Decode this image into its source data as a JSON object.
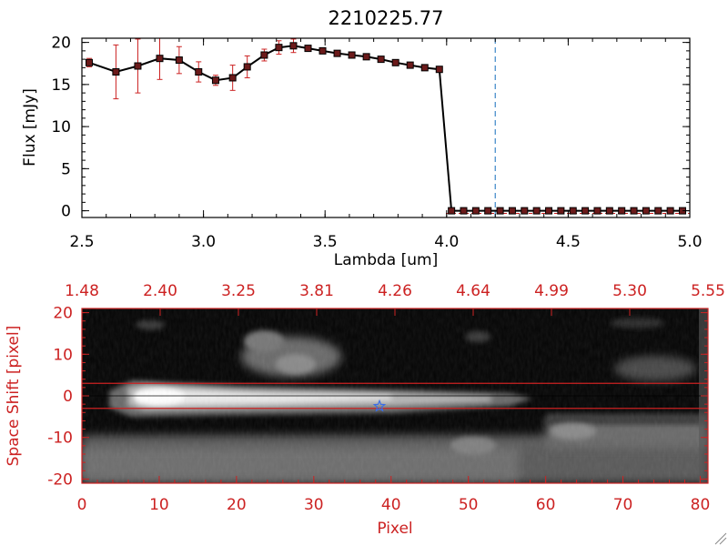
{
  "chart_data": [
    {
      "type": "line",
      "title": "2210225.77",
      "xlabel": "Lambda [um]",
      "ylabel": "Flux [mJy]",
      "xlim": [
        2.5,
        5.0
      ],
      "ylim": [
        -0.8,
        20.5
      ],
      "x_ticks": [
        "2.5",
        "3.0",
        "3.5",
        "4.0",
        "4.5",
        "5.0"
      ],
      "y_ticks": [
        "0",
        "5",
        "10",
        "15",
        "20"
      ],
      "marker_line": 4.2,
      "series": [
        {
          "x": [
            2.53,
            2.64,
            2.73,
            2.82,
            2.9,
            2.98,
            3.05,
            3.12,
            3.18,
            3.25,
            3.31,
            3.37,
            3.43,
            3.49,
            3.55,
            3.61,
            3.67,
            3.73,
            3.79,
            3.85,
            3.91,
            3.97,
            4.02,
            4.07,
            4.12,
            4.17,
            4.22,
            4.27,
            4.32,
            4.37,
            4.42,
            4.47,
            4.52,
            4.57,
            4.62,
            4.67,
            4.72,
            4.77,
            4.82,
            4.87,
            4.92,
            4.97
          ],
          "y": [
            17.6,
            16.5,
            17.2,
            18.1,
            17.9,
            16.5,
            15.5,
            15.8,
            17.1,
            18.5,
            19.4,
            19.6,
            19.3,
            19.0,
            18.7,
            18.5,
            18.3,
            18.0,
            17.6,
            17.3,
            17.0,
            16.8,
            0,
            0,
            0,
            0,
            0,
            0,
            0,
            0,
            0,
            0,
            0,
            0,
            0,
            0,
            0,
            0,
            0,
            0,
            0,
            0
          ],
          "yerr": [
            0.5,
            3.2,
            3.2,
            2.5,
            1.6,
            1.2,
            0.6,
            1.5,
            1.3,
            0.7,
            0.8,
            0.8,
            0.2,
            0.2,
            0.2,
            0.2,
            0.2,
            0.2,
            0.2,
            0.2,
            0.2,
            0.2,
            0,
            0,
            0,
            0,
            0,
            0,
            0,
            0,
            0,
            0,
            0,
            0,
            0,
            0,
            0,
            0,
            0,
            0,
            0,
            0
          ]
        }
      ]
    },
    {
      "type": "heatmap",
      "xlabel": "Pixel",
      "ylabel": "Space Shift [pixel]",
      "xlim": [
        0,
        81
      ],
      "ylim": [
        -21,
        21
      ],
      "x_ticks": [
        "0",
        "10",
        "20",
        "30",
        "40",
        "50",
        "60",
        "70",
        "80"
      ],
      "y_ticks": [
        "-20",
        "-10",
        "0",
        "10",
        "20"
      ],
      "top_axis_ticks": [
        "1.48",
        "2.40",
        "3.25",
        "3.81",
        "4.26",
        "4.64",
        "4.99",
        "5.30",
        "5.55"
      ],
      "aperture_lines": [
        3,
        -3
      ],
      "center_line": 0,
      "source_marker": {
        "x": 38.5,
        "y": -2.5
      }
    }
  ]
}
